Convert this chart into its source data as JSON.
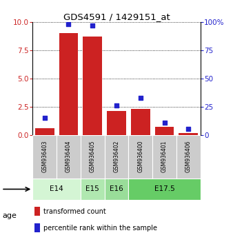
{
  "title": "GDS4591 / 1429151_at",
  "samples": [
    "GSM936403",
    "GSM936404",
    "GSM936405",
    "GSM936402",
    "GSM936400",
    "GSM936401",
    "GSM936406"
  ],
  "transformed_count": [
    0.6,
    9.0,
    8.7,
    2.1,
    2.3,
    0.7,
    0.15
  ],
  "percentile_rank": [
    15,
    98,
    97,
    26,
    33,
    11,
    5
  ],
  "ylim_left": [
    0,
    10
  ],
  "ylim_right": [
    0,
    100
  ],
  "yticks_left": [
    0,
    2.5,
    5,
    7.5,
    10
  ],
  "yticks_right": [
    0,
    25,
    50,
    75,
    100
  ],
  "bar_color": "#cc2222",
  "dot_color": "#2222cc",
  "age_groups": [
    {
      "label": "E14",
      "start": 0,
      "end": 1,
      "color": "#d4f5d4"
    },
    {
      "label": "E15",
      "start": 2,
      "end": 2,
      "color": "#b0e8b0"
    },
    {
      "label": "E16",
      "start": 3,
      "end": 3,
      "color": "#99dd99"
    },
    {
      "label": "E17.5",
      "start": 4,
      "end": 6,
      "color": "#66cc66"
    }
  ],
  "sample_spans": [
    {
      "label": "E14",
      "cols": [
        0,
        1
      ]
    },
    {
      "label": "E15",
      "cols": [
        2
      ]
    },
    {
      "label": "E16",
      "cols": [
        3
      ]
    },
    {
      "label": "E17.5",
      "cols": [
        4,
        5,
        6
      ]
    }
  ],
  "background_color": "#ffffff",
  "sample_box_color": "#cccccc",
  "legend_labels": [
    "transformed count",
    "percentile rank within the sample"
  ]
}
